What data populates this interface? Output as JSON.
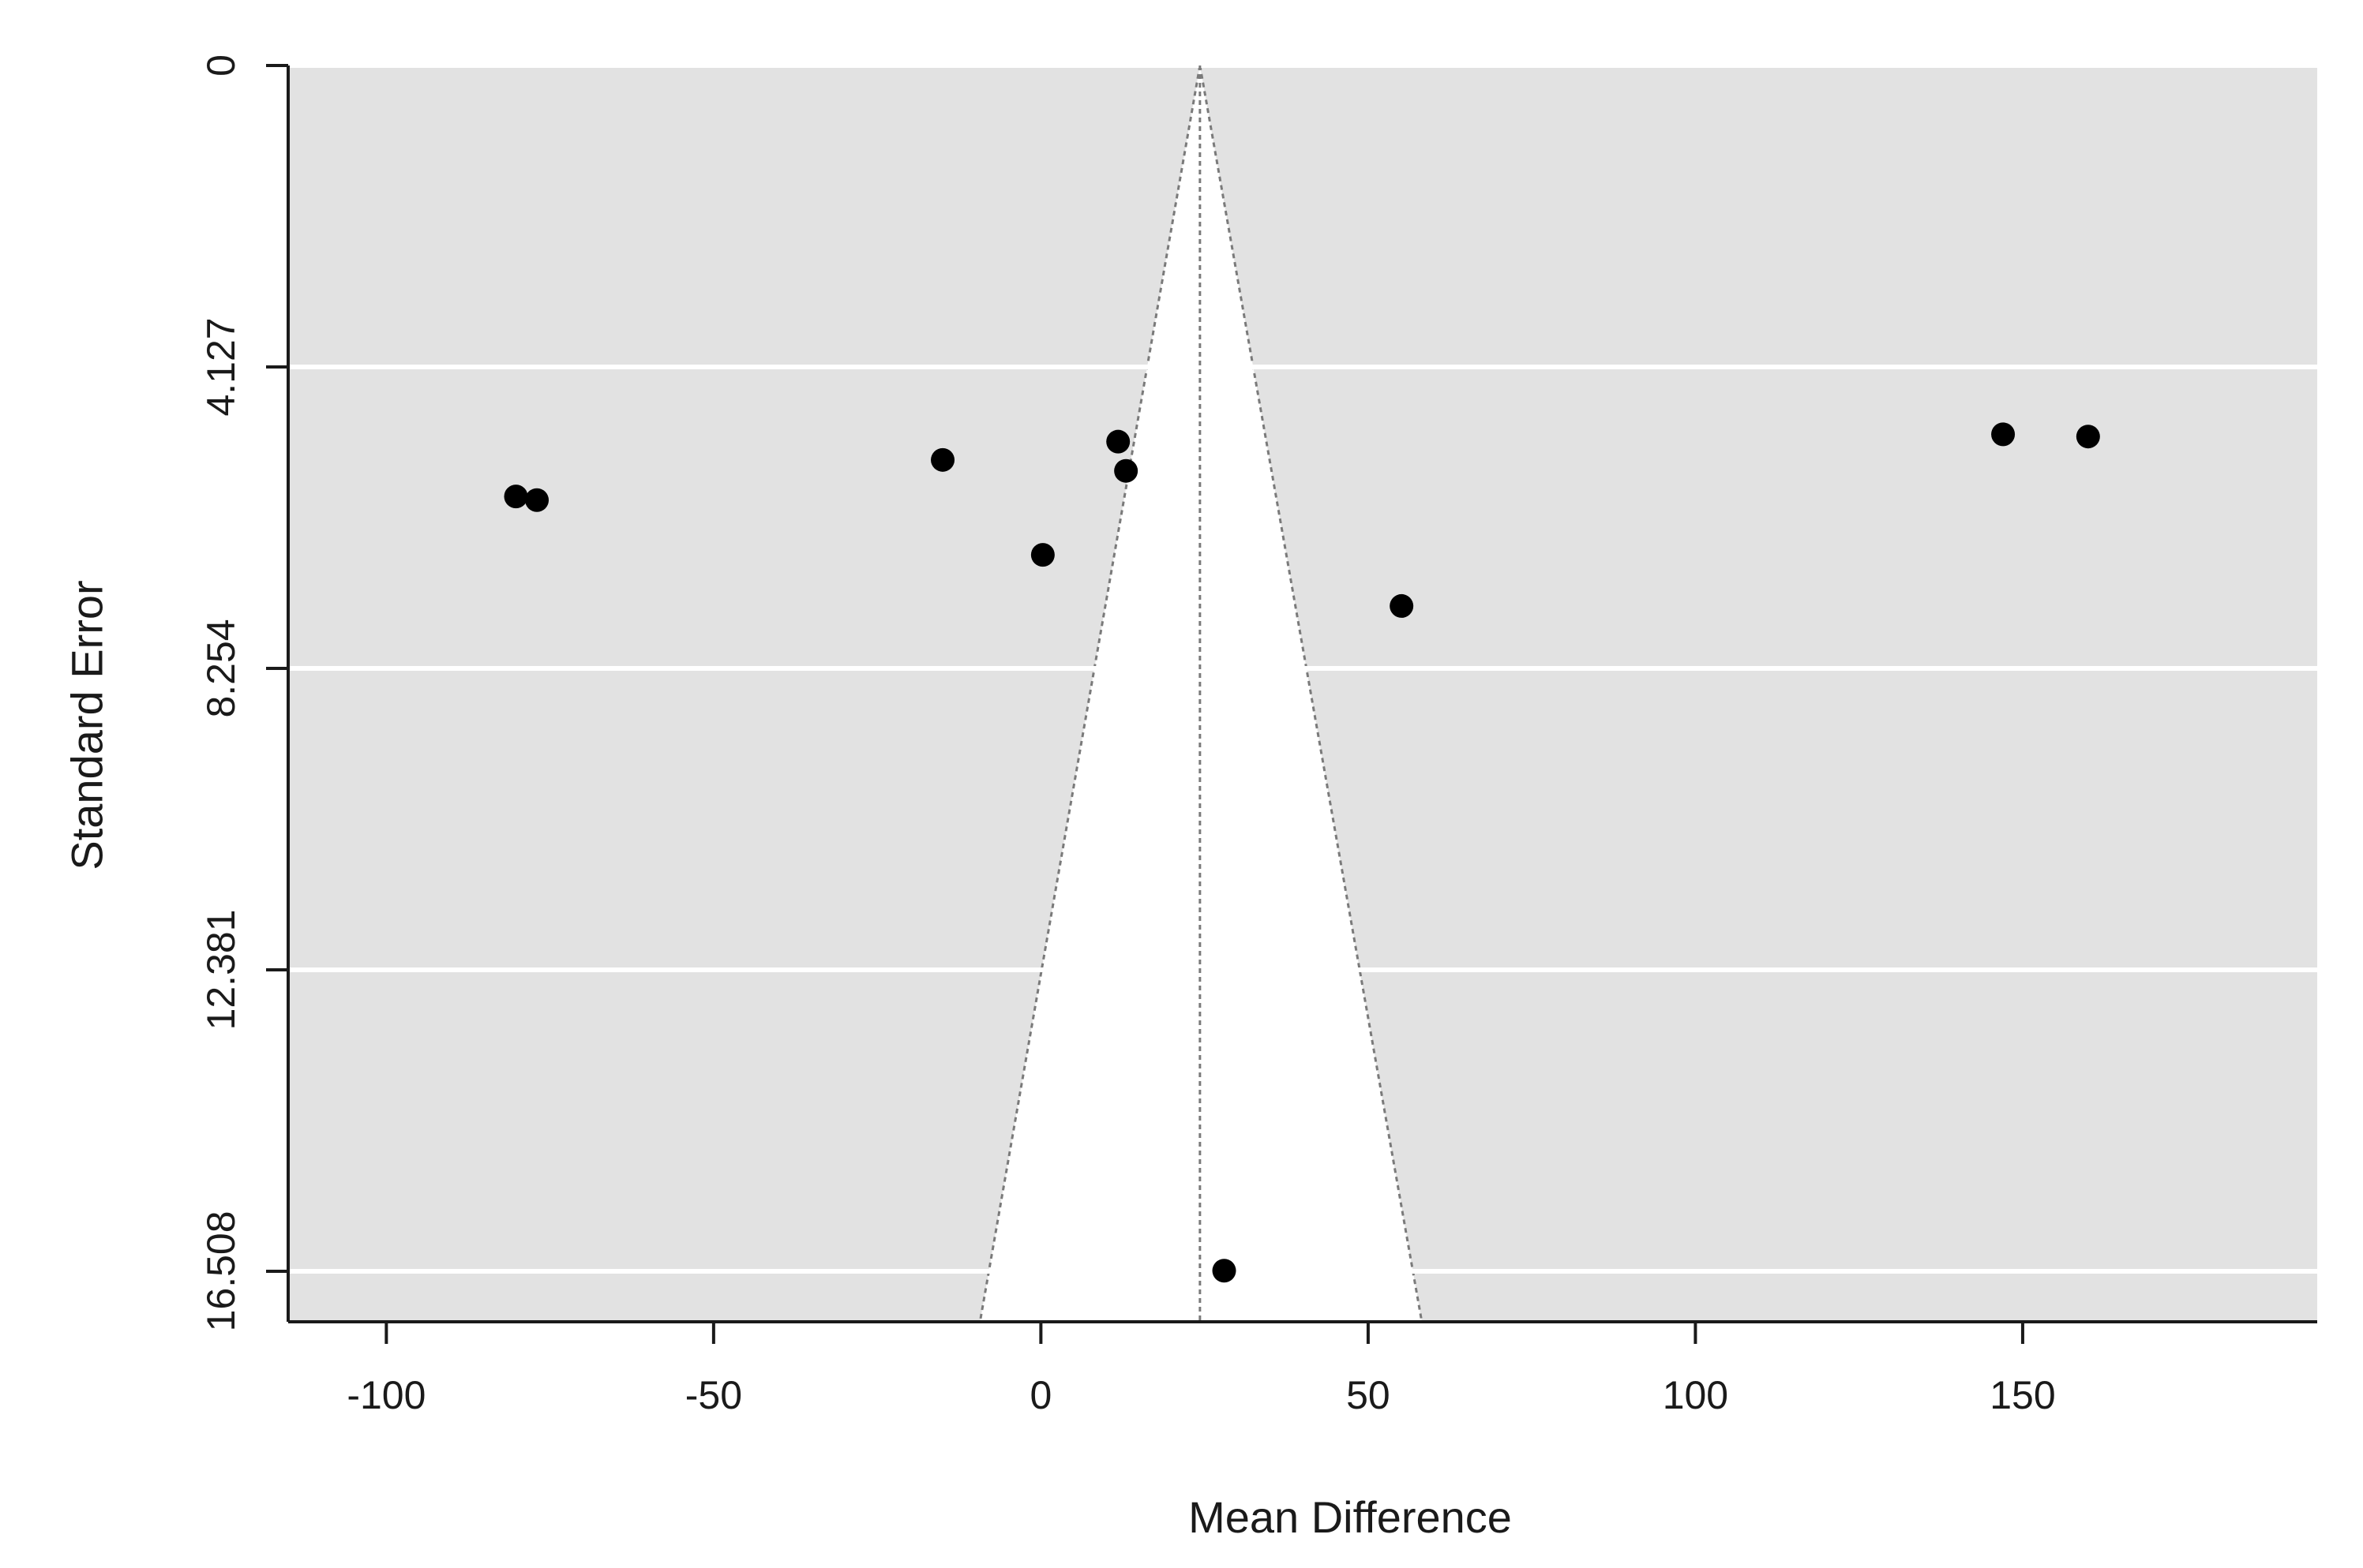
{
  "chart_data": {
    "type": "scatter",
    "subtype": "funnel-plot",
    "title": "",
    "xlabel": "Mean Difference",
    "ylabel": "Standard Error",
    "xlim": [
      -115,
      195
    ],
    "ylim": [
      0,
      17.2
    ],
    "y_inverted": true,
    "x_ticks": [
      -100,
      -50,
      0,
      50,
      100,
      150
    ],
    "x_tick_labels": [
      "-100",
      "-50",
      "0",
      "50",
      "100",
      "150"
    ],
    "y_ticks": [
      0,
      4.127,
      8.254,
      12.381,
      16.508
    ],
    "y_tick_labels": [
      "0",
      "4.127",
      "8.254",
      "12.381",
      "16.508"
    ],
    "grid": true,
    "grid_lines": "horizontal",
    "legend": "none",
    "summary_estimate": 24.3,
    "funnel": {
      "apex": [
        24.3,
        0
      ],
      "base_left": [
        -9.3,
        17.2
      ],
      "base_right": [
        58.2,
        17.2
      ]
    },
    "points": [
      {
        "x": -80.2,
        "y": 5.9
      },
      {
        "x": -77.0,
        "y": 5.95
      },
      {
        "x": -15.0,
        "y": 5.4
      },
      {
        "x": 0.3,
        "y": 6.7
      },
      {
        "x": 11.8,
        "y": 5.15
      },
      {
        "x": 13.0,
        "y": 5.55
      },
      {
        "x": 55.1,
        "y": 7.4
      },
      {
        "x": 28.0,
        "y": 16.5
      },
      {
        "x": 147.0,
        "y": 5.05
      },
      {
        "x": 160.0,
        "y": 5.08
      }
    ],
    "colors": {
      "panel_background": "#e2e2e2",
      "funnel_fill": "#ffffff",
      "gridline": "#ffffff",
      "point": "#000000",
      "axis": "#1a1a1a",
      "funnel_line": "#7a7a7a"
    }
  }
}
